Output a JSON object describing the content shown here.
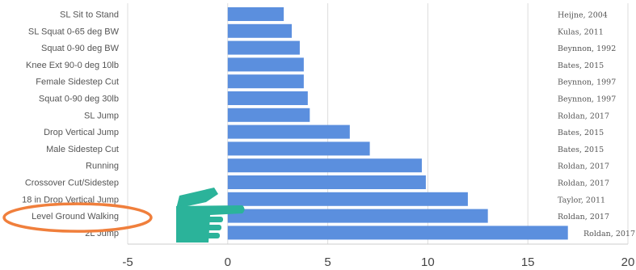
{
  "chart_data": {
    "type": "bar",
    "orientation": "horizontal",
    "categories": [
      "SL Sit to Stand",
      "SL Squat 0-65 deg BW",
      "Squat 0-90 deg BW",
      "Knee Ext 90-0 deg 10lb",
      "Female Sidestep Cut",
      "Squat 0-90 deg 30lb",
      "SL Jump",
      "Drop Vertical Jump",
      "Male Sidestep Cut",
      "Running",
      "Crossover Cut/Sidestep",
      "18 in Drop Vertical Jump",
      "Level Ground Walking",
      "2L Jump"
    ],
    "values": [
      2.8,
      3.2,
      3.6,
      3.8,
      3.8,
      4.0,
      4.1,
      6.1,
      7.1,
      9.7,
      9.9,
      12.0,
      13.0,
      17.0
    ],
    "annotations": [
      "Heijne, 2004",
      "Kulas, 2011",
      "Beynnon, 1992",
      "Bates, 2015",
      "Beynnon, 1997",
      "Beynnon, 1997",
      "Roldan, 2017",
      "Bates, 2015",
      "Bates, 2015",
      "Roldan, 2017",
      "Roldan, 2017",
      "Taylor, 2011",
      "Roldan, 2017",
      "Roldan, 2017"
    ],
    "xlim": [
      -5,
      20
    ],
    "xticks": [
      -5,
      0,
      5,
      10,
      15,
      20
    ],
    "grid": true,
    "highlight": {
      "category": "Level Ground Walking",
      "circle_color": "#f07f3c",
      "arrow_color": "#2bb39a"
    },
    "colors": {
      "bar": "#5b8fde"
    }
  }
}
